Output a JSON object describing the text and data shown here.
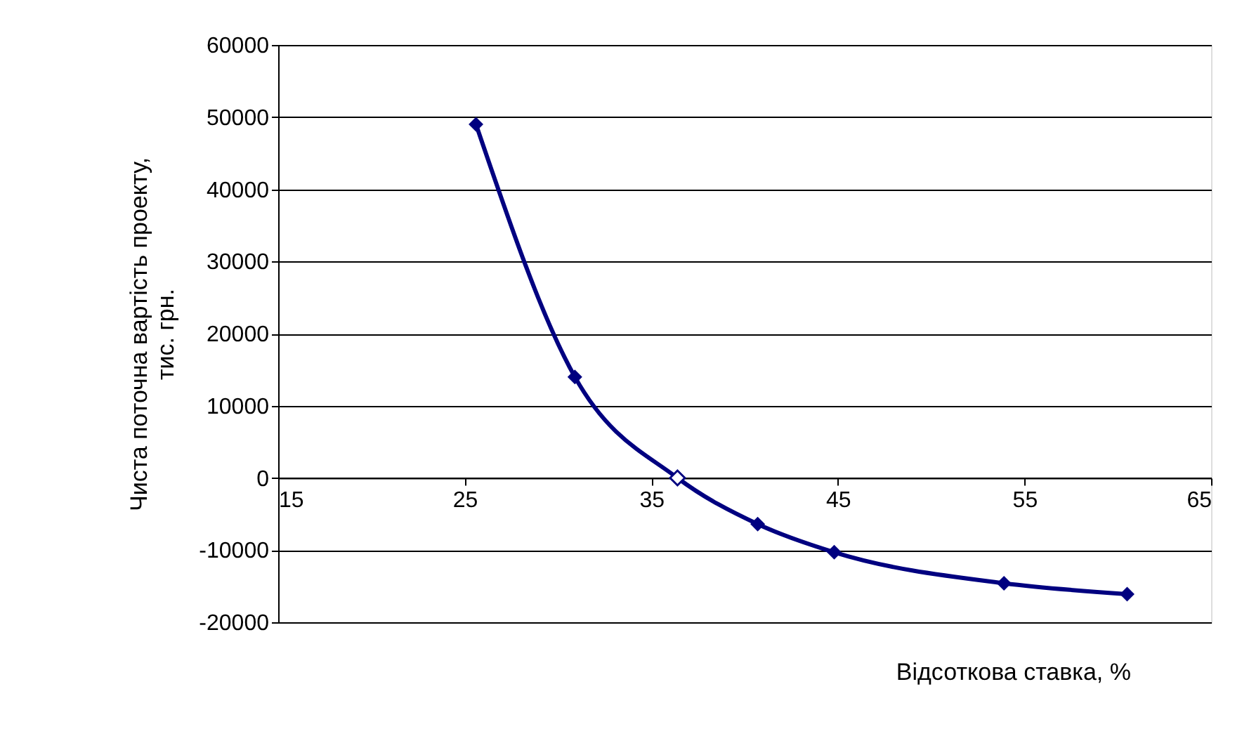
{
  "chart_data": {
    "type": "line",
    "xlabel": "Відсоткова ставка, %",
    "ylabel": "Чиста поточна вартість проекту, тис. грн.",
    "xlim": [
      15,
      65
    ],
    "xticks": [
      15,
      25,
      35,
      45,
      55,
      65
    ],
    "ylim": [
      -20000,
      60000
    ],
    "yticks": [
      -20000,
      -10000,
      0,
      10000,
      20000,
      30000,
      40000,
      50000,
      60000
    ],
    "grid": "y",
    "marker": "diamond",
    "line_style": "solid",
    "series": [
      {
        "color": "#000080",
        "x": [
          25.6,
          30.9,
          36.4,
          40.7,
          44.8,
          53.9,
          60.5
        ],
        "values": [
          49000,
          14000,
          0,
          -6400,
          -10300,
          -14600,
          -16100
        ]
      },
      {
        "type": "scatter",
        "color": "#ffffff",
        "x": [
          36.4
        ],
        "values": [
          0
        ]
      }
    ]
  }
}
